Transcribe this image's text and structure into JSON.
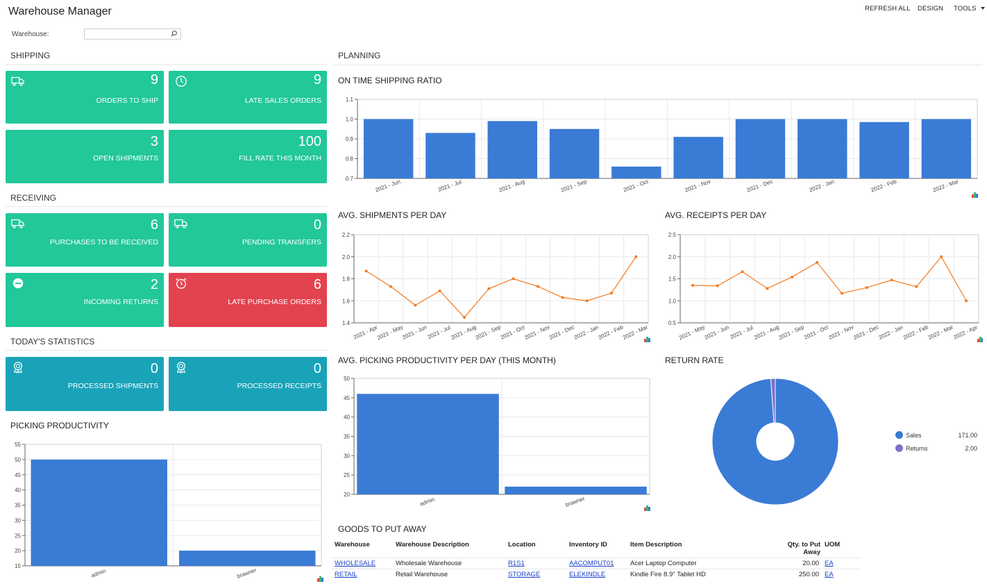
{
  "header": {
    "title": "Warehouse Manager",
    "actions": [
      "REFRESH ALL",
      "DESIGN",
      "TOOLS"
    ]
  },
  "filter": {
    "label": "Warehouse:",
    "value": "",
    "placeholder": ""
  },
  "sections": {
    "shipping": "SHIPPING",
    "receiving": "RECEIVING",
    "statistics": "TODAY'S STATISTICS",
    "picking": "PICKING PRODUCTIVITY",
    "planning": "PLANNING"
  },
  "tiles": {
    "orders_to_ship": {
      "value": "9",
      "label": "ORDERS TO SHIP",
      "icon": "truck-icon"
    },
    "late_sales_orders": {
      "value": "9",
      "label": "LATE SALES ORDERS",
      "icon": "clock-icon"
    },
    "open_shipments": {
      "value": "3",
      "label": "OPEN SHIPMENTS"
    },
    "fill_rate": {
      "value": "100",
      "label": "FILL RATE THIS MONTH"
    },
    "purchases_to_receive": {
      "value": "6",
      "label": "PURCHASES TO BE RECEIVED",
      "icon": "truck-icon"
    },
    "pending_transfers": {
      "value": "0",
      "label": "PENDING TRANSFERS",
      "icon": "truck-icon"
    },
    "incoming_returns": {
      "value": "2",
      "label": "INCOMING RETURNS",
      "icon": "minus-circle-icon"
    },
    "late_purchase_orders": {
      "value": "6",
      "label": "LATE PURCHASE ORDERS",
      "icon": "alarm-clock-icon"
    },
    "processed_shipments": {
      "value": "0",
      "label": "PROCESSED SHIPMENTS",
      "icon": "award-icon"
    },
    "processed_receipts": {
      "value": "0",
      "label": "PROCESSED RECEIPTS",
      "icon": "award-icon"
    }
  },
  "colors": {
    "green": "#22c79a",
    "red": "#e3424f",
    "teal": "#19a3b9",
    "bar": "#3a7bd5",
    "line": "#f47b20",
    "returns": "#7b72c9"
  },
  "chart_data": [
    {
      "id": "on_time",
      "type": "bar",
      "title": "ON TIME SHIPPING RATIO",
      "categories": [
        "2021 - Jun",
        "2021 - Jul",
        "2021 - Aug",
        "2021 - Sep",
        "2021 - Oct",
        "2021 - Nov",
        "2021 - Dec",
        "2022 - Jan",
        "2022 - Feb",
        "2022 - Mar"
      ],
      "values": [
        1.0,
        0.93,
        0.99,
        0.95,
        0.76,
        0.91,
        1.0,
        1.0,
        0.985,
        1.0
      ],
      "ylim": [
        0.7,
        1.1
      ],
      "yticks": [
        "0.7",
        "0.8",
        "0.9",
        "1.0",
        "1.1"
      ]
    },
    {
      "id": "shipments",
      "type": "line",
      "title": "AVG. SHIPMENTS PER DAY",
      "categories": [
        "2021 - Apr",
        "2021 - May",
        "2021 - Jun",
        "2021 - Jul",
        "2021 - Aug",
        "2021 - Sep",
        "2021 - Oct",
        "2021 - Nov",
        "2021 - Dec",
        "2022 - Jan",
        "2022 - Feb",
        "2022 - Mar"
      ],
      "values": [
        1.87,
        1.73,
        1.56,
        1.69,
        1.45,
        1.71,
        1.8,
        1.73,
        1.63,
        1.6,
        1.67,
        2.0
      ],
      "ylim": [
        1.4,
        2.2
      ],
      "yticks": [
        "1.4",
        "1.6",
        "1.8",
        "2.0",
        "2.2"
      ]
    },
    {
      "id": "receipts",
      "type": "line",
      "title": "AVG. RECEIPTS PER DAY",
      "categories": [
        "2021 - May",
        "2021 - Jun",
        "2021 - Jul",
        "2021 - Aug",
        "2021 - Sep",
        "2021 - Oct",
        "2021 - Nov",
        "2021 - Dec",
        "2022 - Jan",
        "2022 - Feb",
        "2022 - Mar",
        "2022 - Apr"
      ],
      "values": [
        1.35,
        1.34,
        1.66,
        1.28,
        1.54,
        1.87,
        1.17,
        1.3,
        1.47,
        1.32,
        2.0,
        1.0
      ],
      "ylim": [
        0.5,
        2.5
      ],
      "yticks": [
        "0.5",
        "1.0",
        "1.5",
        "2.0",
        "2.5"
      ]
    },
    {
      "id": "picking_month",
      "type": "bar",
      "title": "AVG. PICKING PRODUCTIVITY PER DAY (THIS MONTH)",
      "categories": [
        "admin",
        "brawner"
      ],
      "values": [
        46,
        22
      ],
      "ylim": [
        20,
        50
      ],
      "yticks": [
        "20",
        "25",
        "30",
        "35",
        "40",
        "45",
        "50"
      ]
    },
    {
      "id": "return_rate",
      "type": "pie",
      "title": "RETURN RATE",
      "labels": [
        "Sales",
        "Returns"
      ],
      "values": [
        171.0,
        2.0
      ],
      "display_values": [
        "171.00",
        "2.00"
      ]
    },
    {
      "id": "picking",
      "type": "bar",
      "title": "PICKING PRODUCTIVITY",
      "categories": [
        "admin",
        "brawner"
      ],
      "values": [
        50,
        20
      ],
      "ylim": [
        15,
        55
      ],
      "yticks": [
        "15",
        "20",
        "25",
        "30",
        "35",
        "40",
        "45",
        "50",
        "55"
      ]
    }
  ],
  "goods_table": {
    "title": "GOODS TO PUT AWAY",
    "columns": [
      "Warehouse",
      "Warehouse Description",
      "Location",
      "Inventory ID",
      "Item Description",
      "Qty. to Put Away",
      "UOM"
    ],
    "rows": [
      [
        "WHOLESALE",
        "Wholesale Warehouse",
        "R1S1",
        "AACOMPUT01",
        "Acer Laptop Computer",
        "20.00",
        "EA"
      ],
      [
        "RETAIL",
        "Retail Warehouse",
        "STORAGE",
        "ELEKINDLE",
        "Kindle Fire 8.9\" Tablet HD",
        "250.00",
        "EA"
      ]
    ]
  }
}
